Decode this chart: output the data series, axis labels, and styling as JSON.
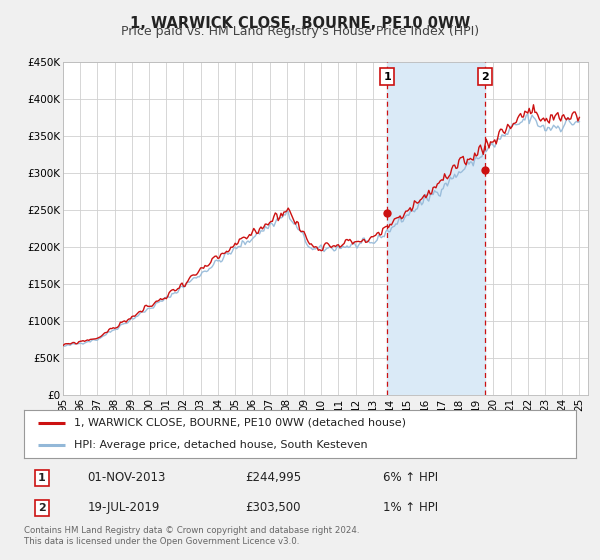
{
  "title": "1, WARWICK CLOSE, BOURNE, PE10 0WW",
  "subtitle": "Price paid vs. HM Land Registry's House Price Index (HPI)",
  "ylim": [
    0,
    450000
  ],
  "yticks": [
    0,
    50000,
    100000,
    150000,
    200000,
    250000,
    300000,
    350000,
    400000,
    450000
  ],
  "ytick_labels": [
    "£0",
    "£50K",
    "£100K",
    "£150K",
    "£200K",
    "£250K",
    "£300K",
    "£350K",
    "£400K",
    "£450K"
  ],
  "xlim_start": 1995.0,
  "xlim_end": 2025.5,
  "xtick_years": [
    1995,
    1996,
    1997,
    1998,
    1999,
    2000,
    2001,
    2002,
    2003,
    2004,
    2005,
    2006,
    2007,
    2008,
    2009,
    2010,
    2011,
    2012,
    2013,
    2014,
    2015,
    2016,
    2017,
    2018,
    2019,
    2020,
    2021,
    2022,
    2023,
    2024,
    2025
  ],
  "xtick_labels": [
    "95",
    "96",
    "97",
    "98",
    "99",
    "00",
    "01",
    "02",
    "03",
    "04",
    "05",
    "06",
    "07",
    "08",
    "09",
    "10",
    "11",
    "12",
    "13",
    "14",
    "15",
    "16",
    "17",
    "18",
    "19",
    "20",
    "21",
    "22",
    "23",
    "24",
    "25"
  ],
  "hpi_color": "#93b8d8",
  "price_color": "#cc1111",
  "sale1_x": 2013.83,
  "sale1_y": 244995,
  "sale2_x": 2019.54,
  "sale2_y": 303500,
  "sale1_date": "01-NOV-2013",
  "sale1_price": "£244,995",
  "sale1_hpi": "6% ↑ HPI",
  "sale2_date": "19-JUL-2019",
  "sale2_price": "£303,500",
  "sale2_hpi": "1% ↑ HPI",
  "shade_color": "#daeaf7",
  "vline_color": "#cc1111",
  "legend_label_price": "1, WARWICK CLOSE, BOURNE, PE10 0WW (detached house)",
  "legend_label_hpi": "HPI: Average price, detached house, South Kesteven",
  "footer_text": "Contains HM Land Registry data © Crown copyright and database right 2024.\nThis data is licensed under the Open Government Licence v3.0.",
  "background_color": "#f0f0f0",
  "plot_background": "#ffffff"
}
